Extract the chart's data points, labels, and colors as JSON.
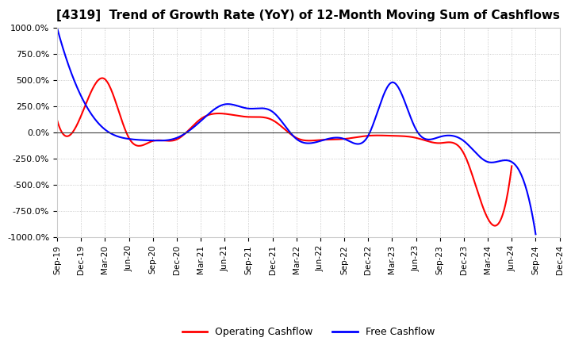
{
  "title": "[4319]  Trend of Growth Rate (YoY) of 12-Month Moving Sum of Cashflows",
  "title_fontsize": 11,
  "ylim": [
    -1000,
    1000
  ],
  "yticks": [
    1000,
    750,
    500,
    250,
    0,
    -250,
    -500,
    -750,
    -1000
  ],
  "ytick_labels": [
    "1000.0%",
    "750.0%",
    "500.0%",
    "250.0%",
    "0.0%",
    "-250.0%",
    "-500.0%",
    "-750.0%",
    "-1000.0%"
  ],
  "x_labels": [
    "Sep-19",
    "Dec-19",
    "Mar-20",
    "Jun-20",
    "Sep-20",
    "Dec-20",
    "Mar-21",
    "Jun-21",
    "Sep-21",
    "Dec-21",
    "Mar-22",
    "Jun-22",
    "Sep-22",
    "Dec-22",
    "Mar-23",
    "Jun-23",
    "Sep-23",
    "Dec-23",
    "Mar-24",
    "Jun-24",
    "Sep-24",
    "Dec-24"
  ],
  "operating_cashflow": [
    120,
    160,
    510,
    -50,
    -80,
    -65,
    130,
    180,
    150,
    120,
    -50,
    -70,
    -60,
    -30,
    -30,
    -50,
    -100,
    -200,
    -820,
    -320,
    null,
    null
  ],
  "free_cashflow": [
    1000,
    350,
    30,
    -60,
    -75,
    -50,
    110,
    270,
    230,
    200,
    -60,
    -80,
    -60,
    -30,
    480,
    30,
    -40,
    -80,
    -280,
    -280,
    -970,
    null
  ],
  "operating_color": "#ff0000",
  "free_color": "#0000ff",
  "background_color": "#ffffff",
  "zero_line_color": "#404040",
  "legend_labels": [
    "Operating Cashflow",
    "Free Cashflow"
  ]
}
